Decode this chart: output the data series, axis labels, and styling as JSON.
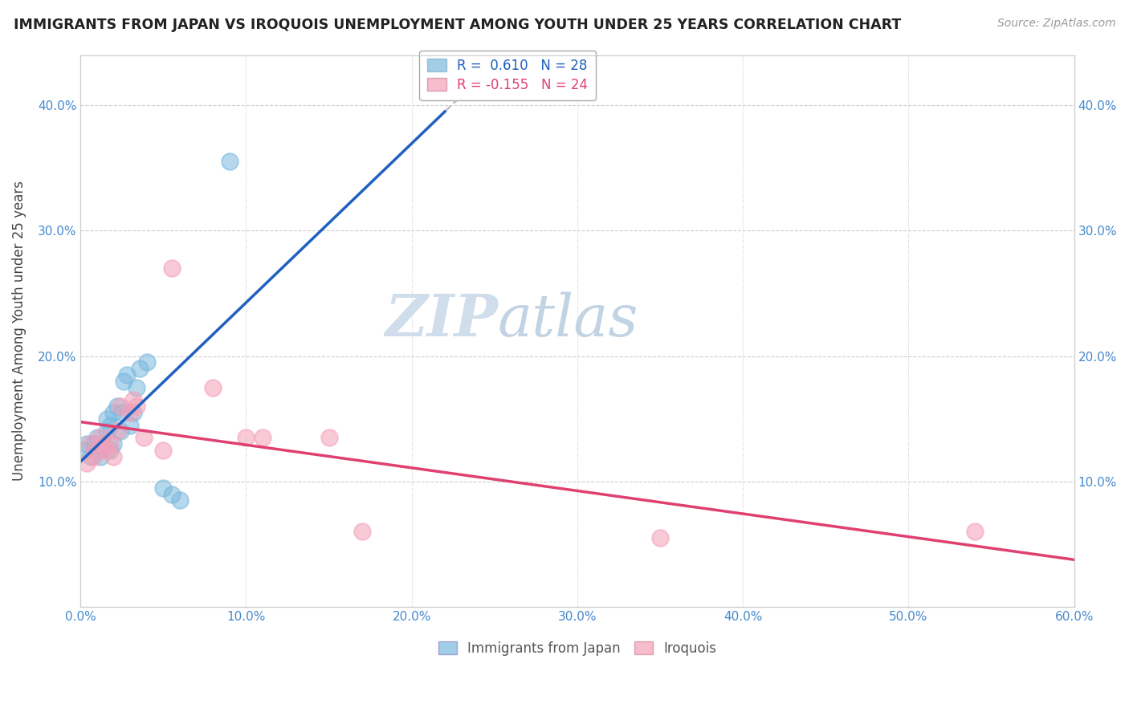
{
  "title": "IMMIGRANTS FROM JAPAN VS IROQUOIS UNEMPLOYMENT AMONG YOUTH UNDER 25 YEARS CORRELATION CHART",
  "source": "Source: ZipAtlas.com",
  "ylabel": "Unemployment Among Youth under 25 years",
  "xlim": [
    0.0,
    0.6
  ],
  "ylim": [
    0.0,
    0.44
  ],
  "xticks": [
    0.0,
    0.1,
    0.2,
    0.3,
    0.4,
    0.5,
    0.6
  ],
  "yticks": [
    0.0,
    0.1,
    0.2,
    0.3,
    0.4
  ],
  "japan_R": 0.61,
  "japan_N": 28,
  "iroquois_R": -0.155,
  "iroquois_N": 24,
  "japan_color": "#7ab8de",
  "iroquois_color": "#f4a0b8",
  "japan_line_color": "#2060c0",
  "iroquois_line_color": "#e04070",
  "watermark_zip": "ZIP",
  "watermark_atlas": "atlas",
  "japan_x": [
    0.002,
    0.004,
    0.006,
    0.008,
    0.01,
    0.01,
    0.012,
    0.014,
    0.016,
    0.016,
    0.018,
    0.018,
    0.02,
    0.02,
    0.022,
    0.024,
    0.025,
    0.026,
    0.028,
    0.03,
    0.032,
    0.034,
    0.036,
    0.04,
    0.05,
    0.055,
    0.06,
    0.09
  ],
  "japan_y": [
    0.125,
    0.13,
    0.12,
    0.13,
    0.125,
    0.135,
    0.12,
    0.13,
    0.14,
    0.15,
    0.125,
    0.145,
    0.13,
    0.155,
    0.16,
    0.14,
    0.155,
    0.18,
    0.185,
    0.145,
    0.155,
    0.175,
    0.19,
    0.195,
    0.095,
    0.09,
    0.085,
    0.355
  ],
  "iroquois_x": [
    0.004,
    0.006,
    0.008,
    0.01,
    0.012,
    0.014,
    0.016,
    0.018,
    0.02,
    0.022,
    0.024,
    0.03,
    0.032,
    0.034,
    0.038,
    0.05,
    0.055,
    0.08,
    0.1,
    0.11,
    0.15,
    0.17,
    0.35,
    0.54
  ],
  "iroquois_y": [
    0.115,
    0.13,
    0.12,
    0.125,
    0.135,
    0.13,
    0.125,
    0.13,
    0.12,
    0.14,
    0.16,
    0.155,
    0.165,
    0.16,
    0.135,
    0.125,
    0.27,
    0.175,
    0.135,
    0.135,
    0.135,
    0.06,
    0.055,
    0.06
  ]
}
